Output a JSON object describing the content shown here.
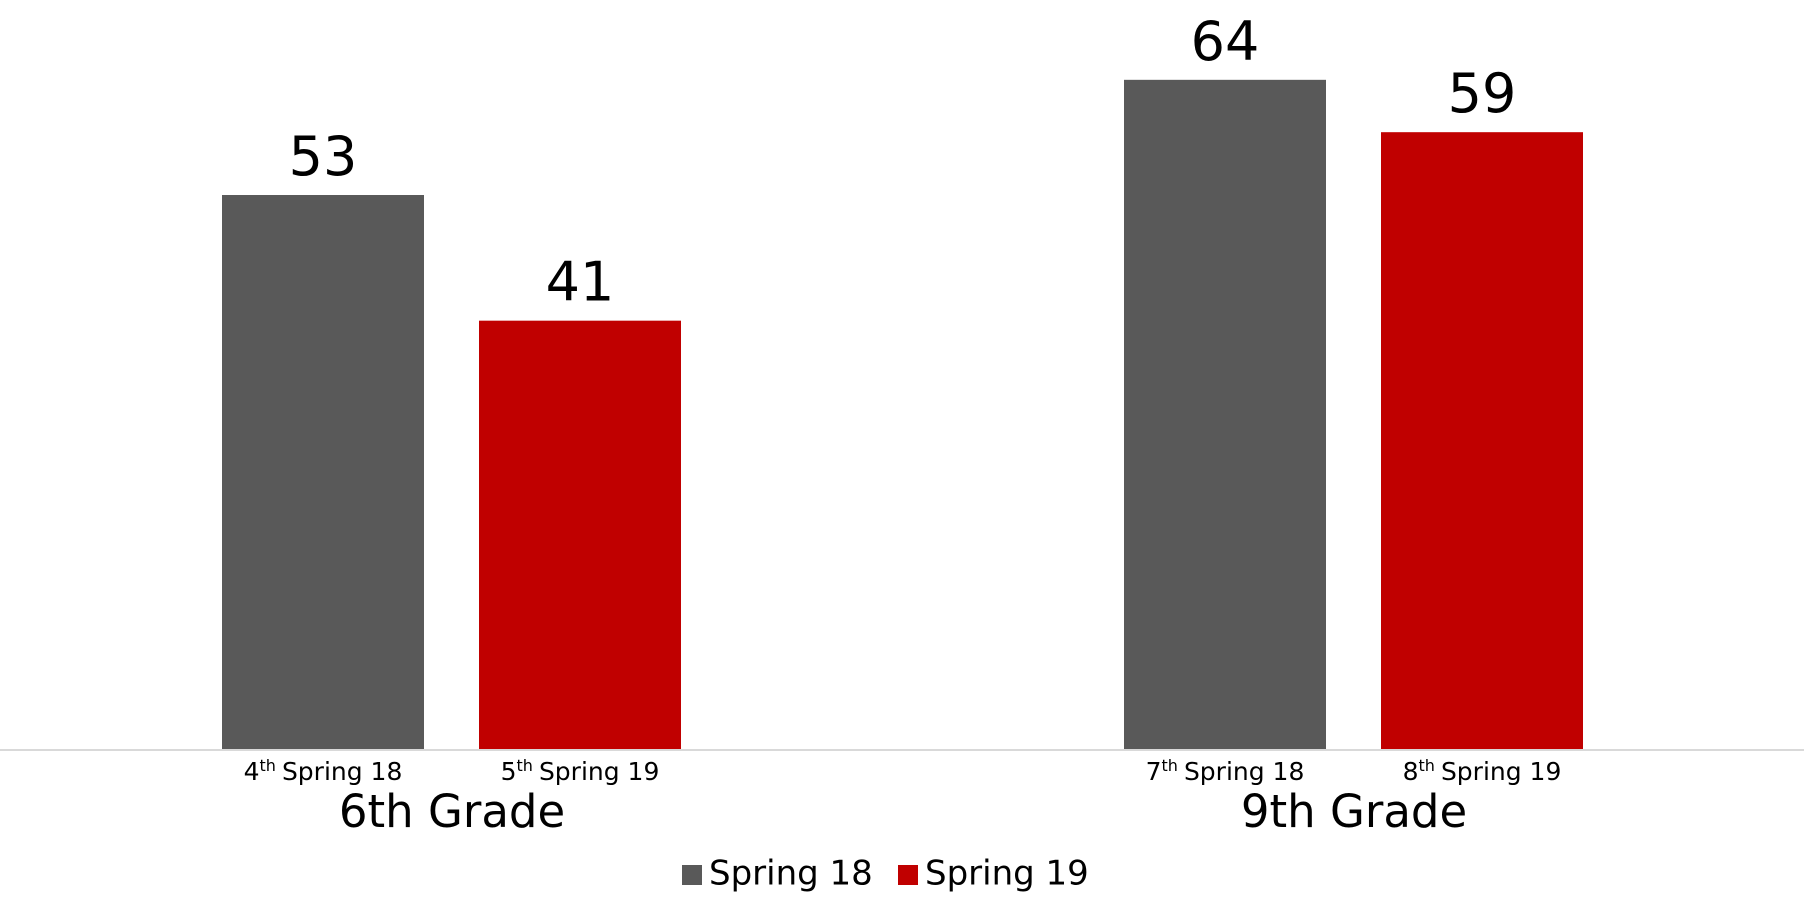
{
  "chart_data": {
    "type": "bar",
    "categories": [
      "6th Grade",
      "9th Grade"
    ],
    "series": [
      {
        "name": "Spring 18",
        "color": "#595959",
        "values": [
          53,
          64
        ],
        "bar_labels": [
          {
            "number": "4",
            "suffix": "th",
            "text": "Spring 18"
          },
          {
            "number": "7",
            "suffix": "th",
            "text": "Spring 18"
          }
        ]
      },
      {
        "name": "Spring 19",
        "color": "#c00000",
        "values": [
          41,
          59
        ],
        "bar_labels": [
          {
            "number": "5",
            "suffix": "th",
            "text": "Spring 19"
          },
          {
            "number": "8",
            "suffix": "th",
            "text": "Spring 19"
          }
        ]
      }
    ],
    "ylim": [
      0,
      70
    ],
    "grid": false,
    "legend": "bottom"
  }
}
